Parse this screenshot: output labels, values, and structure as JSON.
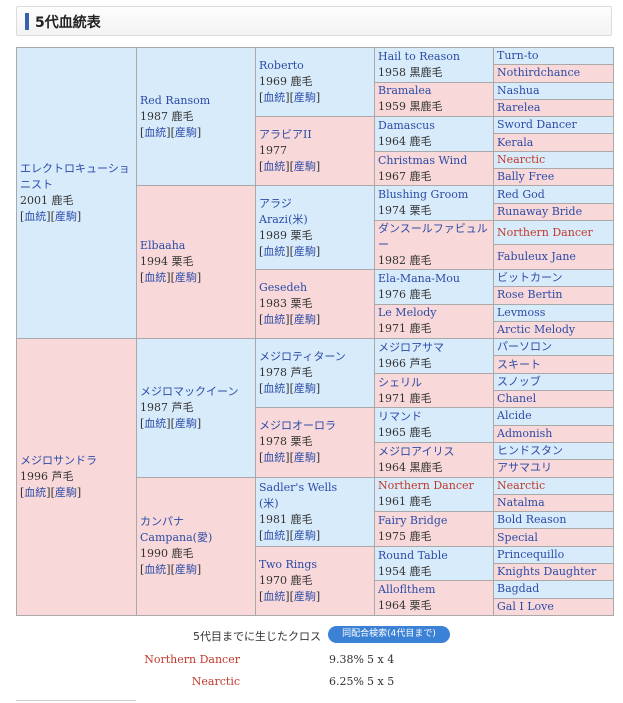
{
  "section_title": "5代血統表",
  "links": {
    "blood": "血統",
    "produce": "産駒"
  },
  "gen1": [
    {
      "name": "エレクトロキューショニスト",
      "info": "2001 鹿毛"
    },
    {
      "name": "メジロサンドラ",
      "info": "1996 芦毛"
    }
  ],
  "gen2": [
    {
      "name": "Red Ransom",
      "info": "1987 鹿毛"
    },
    {
      "name": "Elbaaha",
      "info": "1994 栗毛"
    },
    {
      "name": "メジロマックイーン",
      "info": "1987 芦毛"
    },
    {
      "name": "カンパナ",
      "alt": "Campana(愛)",
      "info": "1990 鹿毛"
    }
  ],
  "gen3": [
    {
      "name": "Roberto",
      "info": "1969 鹿毛"
    },
    {
      "name": "アラビアII",
      "info": "1977"
    },
    {
      "name": "アラジ",
      "alt": "Arazi(米)",
      "info": "1989 栗毛"
    },
    {
      "name": "Gesedeh",
      "info": "1983 栗毛"
    },
    {
      "name": "メジロティターン",
      "info": "1978 芦毛"
    },
    {
      "name": "メジロオーロラ",
      "info": "1978 栗毛"
    },
    {
      "name": "Sadler's Wells",
      "alt": "(米)",
      "info": "1981 鹿毛"
    },
    {
      "name": "Two Rings",
      "info": "1970 鹿毛"
    }
  ],
  "gen4": [
    {
      "name": "Hail to Reason",
      "info": "1958 黒鹿毛"
    },
    {
      "name": "Bramalea",
      "info": "1959 黒鹿毛"
    },
    {
      "name": "Damascus",
      "info": "1964 鹿毛"
    },
    {
      "name": "Christmas Wind",
      "info": "1967 鹿毛"
    },
    {
      "name": "Blushing Groom",
      "info": "1974 栗毛"
    },
    {
      "name": "ダンスールファビュルー",
      "info": "1982 鹿毛"
    },
    {
      "name": "Ela-Mana-Mou",
      "info": "1976 鹿毛"
    },
    {
      "name": "Le Melody",
      "info": "1971 鹿毛"
    },
    {
      "name": "メジロアサマ",
      "info": "1966 芦毛"
    },
    {
      "name": "シェリル",
      "info": "1971 鹿毛"
    },
    {
      "name": "リマンド",
      "info": "1965 鹿毛"
    },
    {
      "name": "メジロアイリス",
      "info": "1964 黒鹿毛"
    },
    {
      "name": "Northern Dancer",
      "info": "1961 鹿毛",
      "cross": true
    },
    {
      "name": "Fairy Bridge",
      "info": "1975 鹿毛"
    },
    {
      "name": "Round Table",
      "info": "1954 鹿毛"
    },
    {
      "name": "Alloflthem",
      "info": "1964 栗毛"
    }
  ],
  "gen5": [
    {
      "name": "Turn-to"
    },
    {
      "name": "Nothirdchance"
    },
    {
      "name": "Nashua"
    },
    {
      "name": "Rarelea"
    },
    {
      "name": "Sword Dancer"
    },
    {
      "name": "Kerala"
    },
    {
      "name": "Nearctic",
      "cross": true
    },
    {
      "name": "Bally Free"
    },
    {
      "name": "Red God"
    },
    {
      "name": "Runaway Bride"
    },
    {
      "name": "Northern Dancer",
      "cross": true
    },
    {
      "name": "Fabuleux Jane"
    },
    {
      "name": "ビットカーン"
    },
    {
      "name": "Rose Bertin"
    },
    {
      "name": "Levmoss"
    },
    {
      "name": "Arctic Melody"
    },
    {
      "name": "パーソロン"
    },
    {
      "name": "スキート"
    },
    {
      "name": "スノッブ"
    },
    {
      "name": "Chanel"
    },
    {
      "name": "Alcide"
    },
    {
      "name": "Admonish"
    },
    {
      "name": "ヒンドスタン"
    },
    {
      "name": "アサマユリ"
    },
    {
      "name": "Nearctic",
      "cross": true
    },
    {
      "name": "Natalma"
    },
    {
      "name": "Bold Reason"
    },
    {
      "name": "Special"
    },
    {
      "name": "Princequillo"
    },
    {
      "name": "Knights Daughter"
    },
    {
      "name": "Bagdad"
    },
    {
      "name": "Gal I Love"
    }
  ],
  "cross": {
    "label": "5代目までに生じたクロス",
    "button": "同配合検索(4代目まで)",
    "rows": [
      {
        "name": "Northern Dancer",
        "pct": "9.38%",
        "gen": "5 x 4"
      },
      {
        "name": "Nearctic",
        "pct": "6.25%",
        "gen": "5 x 5"
      }
    ]
  }
}
